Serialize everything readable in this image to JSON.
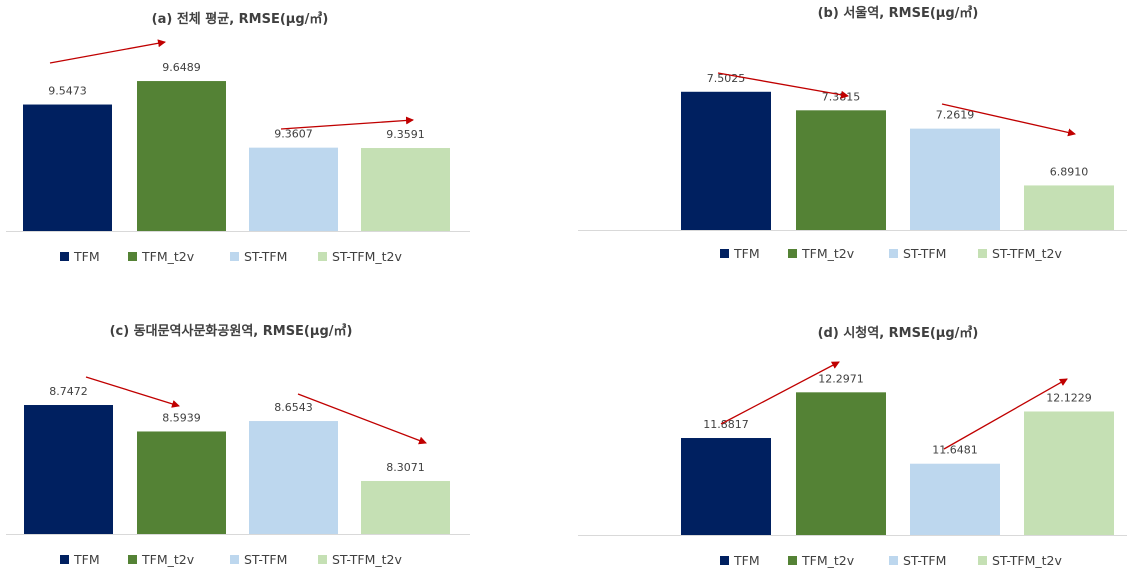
{
  "colors": {
    "TFM": "#002060",
    "TFM_t2v": "#548235",
    "ST-TFM": "#BDD7EE",
    "ST-TFM_t2v": "#C5E0B4",
    "arrow": "#C00000",
    "axis": "#D9D9D9",
    "text": "#404040"
  },
  "chart_data": [
    {
      "type": "bar",
      "title": "(a) 전체 평균, RMSE(μg/㎥)",
      "categories": [
        "TFM",
        "TFM_t2v",
        "ST-TFM",
        "ST-TFM_t2v"
      ],
      "values": [
        9.5473,
        9.6489,
        9.3607,
        9.3591
      ],
      "labels": [
        "9.5473",
        "9.6489",
        "9.3607",
        "9.3591"
      ],
      "ylim": [
        9.0,
        9.74
      ],
      "legend": [
        "TFM",
        "TFM_t2v",
        "ST-TFM",
        "ST-TFM_t2v"
      ],
      "legend_position": "bottom",
      "annotations": [
        "arrow from TFM to TFM_t2v (up)",
        "arrow from ST-TFM to ST-TFM_t2v"
      ]
    },
    {
      "type": "bar",
      "title": "(b) 서울역, RMSE(μg/㎥)",
      "categories": [
        "TFM",
        "TFM_t2v",
        "ST-TFM",
        "ST-TFM_t2v"
      ],
      "values": [
        7.5025,
        7.3815,
        7.2619,
        6.891
      ],
      "labels": [
        "7.5025",
        "7.3815",
        "7.2619",
        "6.8910"
      ],
      "ylim": [
        6.6,
        7.71
      ],
      "legend": [
        "TFM",
        "TFM_t2v",
        "ST-TFM",
        "ST-TFM_t2v"
      ],
      "legend_position": "bottom",
      "annotations": [
        "arrow from TFM to TFM_t2v (down)",
        "arrow from ST-TFM to ST-TFM_t2v (down)"
      ]
    },
    {
      "type": "bar",
      "title": "(c) 동대문역사문화공원역, RMSE(μg/㎥)",
      "categories": [
        "TFM",
        "TFM_t2v",
        "ST-TFM",
        "ST-TFM_t2v"
      ],
      "values": [
        8.7472,
        8.5939,
        8.6543,
        8.3071
      ],
      "labels": [
        "8.7472",
        "8.5939",
        "8.6543",
        "8.3071"
      ],
      "ylim": [
        8.0,
        8.95
      ],
      "legend": [
        "TFM",
        "TFM_t2v",
        "ST-TFM",
        "ST-TFM_t2v"
      ],
      "legend_position": "bottom",
      "annotations": [
        "arrow from TFM to TFM_t2v (down)",
        "arrow from ST-TFM to ST-TFM_t2v (down)"
      ]
    },
    {
      "type": "bar",
      "title": "(d) 시청역, RMSE(μg/㎥)",
      "categories": [
        "TFM",
        "TFM_t2v",
        "ST-TFM",
        "ST-TFM_t2v"
      ],
      "values": [
        11.8817,
        12.2971,
        11.6481,
        12.1229
      ],
      "labels": [
        "11.8817",
        "12.2971",
        "11.6481",
        "12.1229"
      ],
      "ylim": [
        11.0,
        12.5
      ],
      "legend": [
        "TFM",
        "TFM_t2v",
        "ST-TFM",
        "ST-TFM_t2v"
      ],
      "legend_position": "bottom",
      "annotations": [
        "arrow from TFM to TFM_t2v (up)",
        "arrow from ST-TFM to ST-TFM_t2v (up)"
      ]
    }
  ]
}
